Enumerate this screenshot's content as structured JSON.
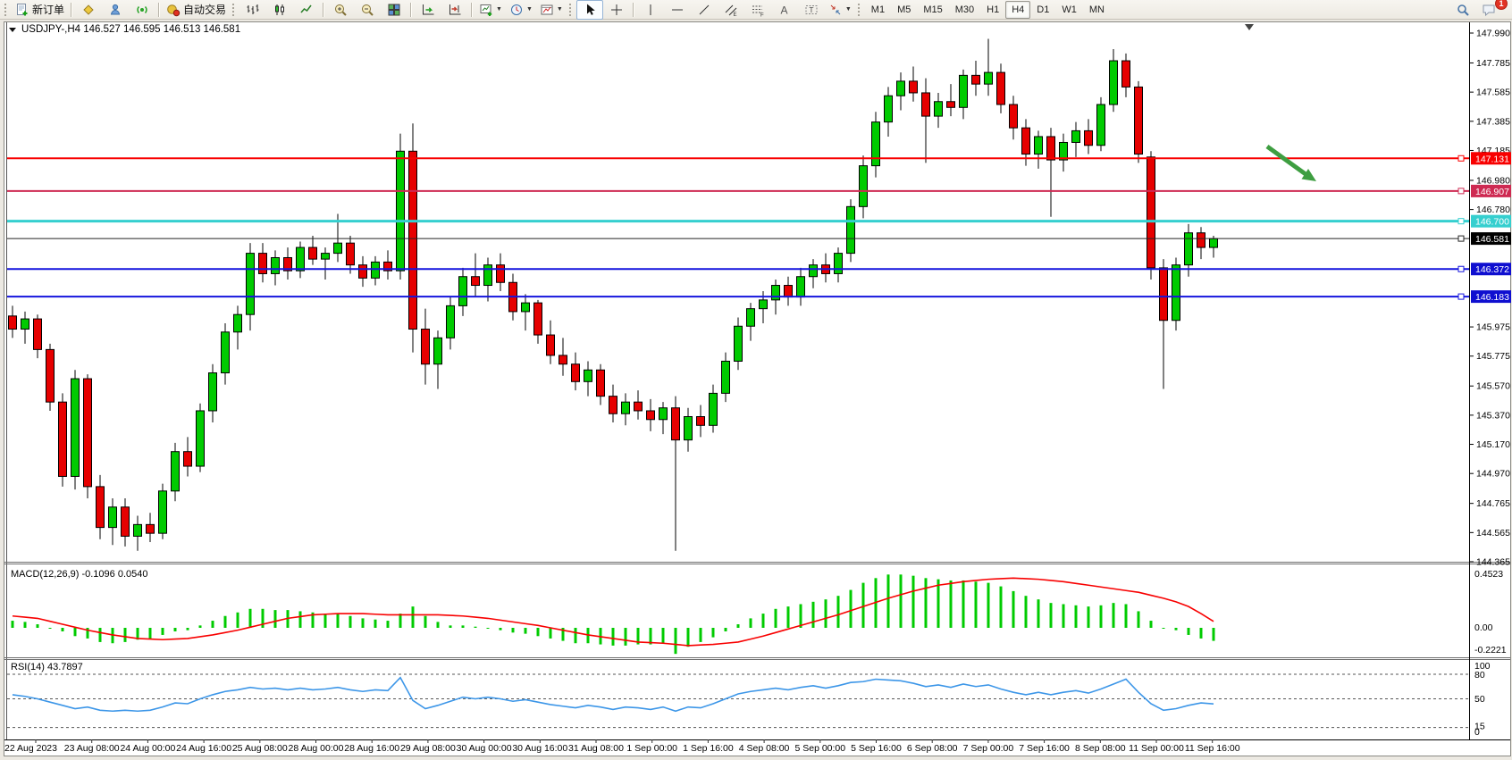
{
  "toolbar": {
    "new_order_label": "新订单",
    "autotrade_label": "自动交易",
    "timeframes": [
      "M1",
      "M5",
      "M15",
      "M30",
      "H1",
      "H4",
      "D1",
      "W1",
      "MN"
    ],
    "active_timeframe": "H4",
    "notification_badge": "1"
  },
  "chart_data": {
    "type": "candlestick",
    "title": {
      "symbol": "USDJPY-,H4",
      "open": "146.527",
      "high": "146.595",
      "low": "146.513",
      "close": "146.581"
    },
    "price_axis_ticks": [
      147.99,
      147.785,
      147.585,
      147.385,
      147.185,
      146.98,
      146.78,
      145.975,
      145.775,
      145.57,
      145.37,
      145.17,
      144.97,
      144.765,
      144.565,
      144.365
    ],
    "hlines": [
      {
        "price": 147.131,
        "label": "147.131",
        "color": "#F80000",
        "width": 2,
        "label_bg": "#F80000"
      },
      {
        "price": 146.907,
        "label": "146.907",
        "color": "#CE2A52",
        "width": 2,
        "label_bg": "#CE2A52"
      },
      {
        "price": 146.7,
        "label": "146.700",
        "color": "#35CFCF",
        "width": 3,
        "label_bg": "#35CFCF"
      },
      {
        "price": 146.581,
        "label": "146.581",
        "color": "#252525",
        "width": 1,
        "label_bg": "#000000"
      },
      {
        "price": 146.372,
        "label": "146.372",
        "color": "#1414DD",
        "width": 2,
        "label_bg": "#0F0FD0"
      },
      {
        "price": 146.183,
        "label": "146.183",
        "color": "#1414DD",
        "width": 2,
        "label_bg": "#0F0FD0"
      }
    ],
    "colors": {
      "up": "#00CB00",
      "down": "#E60000",
      "outline": "#000000"
    },
    "candles": [
      [
        146.05,
        146.12,
        145.9,
        145.96
      ],
      [
        145.96,
        146.08,
        145.86,
        146.03
      ],
      [
        146.03,
        146.06,
        145.76,
        145.82
      ],
      [
        145.82,
        145.86,
        145.4,
        145.46
      ],
      [
        145.46,
        145.52,
        144.88,
        144.95
      ],
      [
        144.95,
        145.68,
        144.86,
        145.62
      ],
      [
        145.62,
        145.65,
        144.8,
        144.88
      ],
      [
        144.88,
        144.96,
        144.52,
        144.6
      ],
      [
        144.6,
        144.8,
        144.48,
        144.74
      ],
      [
        144.74,
        144.8,
        144.47,
        144.54
      ],
      [
        144.54,
        144.68,
        144.44,
        144.62
      ],
      [
        144.62,
        144.7,
        144.5,
        144.56
      ],
      [
        144.56,
        144.9,
        144.52,
        144.85
      ],
      [
        144.85,
        145.18,
        144.78,
        145.12
      ],
      [
        145.12,
        145.22,
        144.95,
        145.02
      ],
      [
        145.02,
        145.45,
        144.98,
        145.4
      ],
      [
        145.4,
        145.72,
        145.32,
        145.66
      ],
      [
        145.66,
        146.0,
        145.58,
        145.94
      ],
      [
        145.94,
        146.12,
        145.82,
        146.06
      ],
      [
        146.06,
        146.55,
        145.95,
        146.48
      ],
      [
        146.48,
        146.55,
        146.28,
        146.34
      ],
      [
        146.34,
        146.5,
        146.26,
        146.45
      ],
      [
        146.45,
        146.52,
        146.3,
        146.36
      ],
      [
        146.36,
        146.56,
        146.31,
        146.52
      ],
      [
        146.52,
        146.6,
        146.4,
        146.44
      ],
      [
        146.44,
        146.52,
        146.3,
        146.48
      ],
      [
        146.48,
        146.75,
        146.42,
        146.55
      ],
      [
        146.55,
        146.6,
        146.34,
        146.4
      ],
      [
        146.4,
        146.46,
        146.25,
        146.31
      ],
      [
        146.31,
        146.46,
        146.26,
        146.42
      ],
      [
        146.42,
        146.5,
        146.3,
        146.36
      ],
      [
        146.36,
        147.3,
        146.3,
        147.18
      ],
      [
        147.18,
        147.37,
        145.8,
        145.96
      ],
      [
        145.96,
        146.1,
        145.58,
        145.72
      ],
      [
        145.72,
        145.95,
        145.55,
        145.9
      ],
      [
        145.9,
        146.18,
        145.82,
        146.12
      ],
      [
        146.12,
        146.38,
        146.05,
        146.32
      ],
      [
        146.32,
        146.48,
        146.18,
        146.26
      ],
      [
        146.26,
        146.45,
        146.15,
        146.4
      ],
      [
        146.4,
        146.48,
        146.22,
        146.28
      ],
      [
        146.28,
        146.34,
        146.02,
        146.08
      ],
      [
        146.08,
        146.2,
        145.95,
        146.14
      ],
      [
        146.14,
        146.16,
        145.86,
        145.92
      ],
      [
        145.92,
        146.02,
        145.72,
        145.78
      ],
      [
        145.78,
        145.9,
        145.64,
        145.72
      ],
      [
        145.72,
        145.8,
        145.54,
        145.6
      ],
      [
        145.6,
        145.74,
        145.5,
        145.68
      ],
      [
        145.68,
        145.72,
        145.44,
        145.5
      ],
      [
        145.5,
        145.58,
        145.32,
        145.38
      ],
      [
        145.38,
        145.52,
        145.3,
        145.46
      ],
      [
        145.46,
        145.54,
        145.34,
        145.4
      ],
      [
        145.4,
        145.48,
        145.26,
        145.34
      ],
      [
        145.34,
        145.46,
        145.24,
        145.42
      ],
      [
        145.42,
        145.5,
        144.44,
        145.2
      ],
      [
        145.2,
        145.42,
        145.12,
        145.36
      ],
      [
        145.36,
        145.44,
        145.22,
        145.3
      ],
      [
        145.3,
        145.58,
        145.25,
        145.52
      ],
      [
        145.52,
        145.8,
        145.46,
        145.74
      ],
      [
        145.74,
        146.04,
        145.68,
        145.98
      ],
      [
        145.98,
        146.14,
        145.88,
        146.1
      ],
      [
        146.1,
        146.22,
        146.0,
        146.16
      ],
      [
        146.16,
        146.3,
        146.06,
        146.26
      ],
      [
        146.26,
        146.32,
        146.12,
        146.18
      ],
      [
        146.18,
        146.38,
        146.12,
        146.32
      ],
      [
        146.32,
        146.44,
        146.24,
        146.4
      ],
      [
        146.4,
        146.48,
        146.28,
        146.34
      ],
      [
        146.34,
        146.52,
        146.28,
        146.48
      ],
      [
        146.48,
        146.85,
        146.42,
        146.8
      ],
      [
        146.8,
        147.15,
        146.72,
        147.08
      ],
      [
        147.08,
        147.45,
        147.0,
        147.38
      ],
      [
        147.38,
        147.62,
        147.28,
        147.56
      ],
      [
        147.56,
        147.72,
        147.46,
        147.66
      ],
      [
        147.66,
        147.76,
        147.52,
        147.58
      ],
      [
        147.58,
        147.68,
        147.1,
        147.42
      ],
      [
        147.42,
        147.58,
        147.34,
        147.52
      ],
      [
        147.52,
        147.64,
        147.42,
        147.48
      ],
      [
        147.48,
        147.74,
        147.4,
        147.7
      ],
      [
        147.7,
        147.8,
        147.56,
        147.64
      ],
      [
        147.64,
        147.95,
        147.56,
        147.72
      ],
      [
        147.72,
        147.78,
        147.44,
        147.5
      ],
      [
        147.5,
        147.56,
        147.26,
        147.34
      ],
      [
        147.34,
        147.4,
        147.08,
        147.16
      ],
      [
        147.16,
        147.32,
        147.06,
        147.28
      ],
      [
        147.28,
        147.34,
        146.73,
        147.12
      ],
      [
        147.12,
        147.3,
        147.04,
        147.24
      ],
      [
        147.24,
        147.38,
        147.14,
        147.32
      ],
      [
        147.32,
        147.4,
        147.16,
        147.22
      ],
      [
        147.22,
        147.55,
        147.18,
        147.5
      ],
      [
        147.5,
        147.88,
        147.45,
        147.8
      ],
      [
        147.8,
        147.85,
        147.55,
        147.62
      ],
      [
        147.62,
        147.66,
        147.1,
        147.16
      ],
      [
        147.14,
        147.18,
        146.3,
        146.38
      ],
      [
        146.38,
        146.44,
        145.55,
        146.02
      ],
      [
        146.02,
        146.45,
        145.95,
        146.4
      ],
      [
        146.4,
        146.68,
        146.32,
        146.62
      ],
      [
        146.62,
        146.66,
        146.44,
        146.52
      ],
      [
        146.52,
        146.6,
        146.45,
        146.58
      ]
    ],
    "time_labels": [
      "22 Aug 2023",
      "23 Aug 08:00",
      "24 Aug 00:00",
      "24 Aug 16:00",
      "25 Aug 08:00",
      "28 Aug 00:00",
      "28 Aug 16:00",
      "29 Aug 08:00",
      "30 Aug 00:00",
      "30 Aug 16:00",
      "31 Aug 08:00",
      "1 Sep 00:00",
      "1 Sep 16:00",
      "4 Sep 08:00",
      "5 Sep 00:00",
      "5 Sep 16:00",
      "6 Sep 08:00",
      "7 Sep 00:00",
      "7 Sep 16:00",
      "8 Sep 08:00",
      "11 Sep 00:00",
      "11 Sep 16:00"
    ],
    "annotation_arrow": {
      "color": "#3E9E41"
    },
    "macd": {
      "name": "MACD(12,26,9)",
      "value_main": "-0.1096",
      "value_signal": "0.0540",
      "axis": [
        "0.4523",
        "0.00",
        "-0.2221"
      ],
      "hist_color": "#00CB00",
      "signal_color": "#F80000",
      "hist": [
        0.06,
        0.05,
        0.03,
        0.0,
        -0.03,
        -0.07,
        -0.09,
        -0.12,
        -0.13,
        -0.12,
        -0.1,
        -0.09,
        -0.06,
        -0.03,
        -0.02,
        0.02,
        0.06,
        0.1,
        0.13,
        0.16,
        0.16,
        0.15,
        0.15,
        0.14,
        0.13,
        0.12,
        0.12,
        0.1,
        0.08,
        0.07,
        0.06,
        0.12,
        0.18,
        0.1,
        0.05,
        0.02,
        0.02,
        0.01,
        0.0,
        -0.02,
        -0.04,
        -0.05,
        -0.07,
        -0.09,
        -0.11,
        -0.13,
        -0.13,
        -0.14,
        -0.15,
        -0.15,
        -0.14,
        -0.14,
        -0.13,
        -0.22,
        -0.16,
        -0.12,
        -0.08,
        -0.03,
        0.03,
        0.08,
        0.12,
        0.16,
        0.18,
        0.2,
        0.22,
        0.24,
        0.27,
        0.32,
        0.38,
        0.42,
        0.45,
        0.45,
        0.44,
        0.42,
        0.41,
        0.4,
        0.4,
        0.39,
        0.38,
        0.35,
        0.31,
        0.27,
        0.24,
        0.21,
        0.2,
        0.19,
        0.18,
        0.19,
        0.21,
        0.2,
        0.14,
        0.06,
        0.0,
        -0.02,
        -0.06,
        -0.09,
        -0.11
      ],
      "signal": [
        0.1,
        0.09,
        0.08,
        0.055,
        0.03,
        0.005,
        -0.02,
        -0.04,
        -0.06,
        -0.075,
        -0.09,
        -0.095,
        -0.1,
        -0.095,
        -0.09,
        -0.075,
        -0.06,
        -0.04,
        -0.02,
        0.005,
        0.03,
        0.055,
        0.08,
        0.095,
        0.11,
        0.115,
        0.12,
        0.12,
        0.12,
        0.115,
        0.11,
        0.11,
        0.11,
        0.11,
        0.11,
        0.105,
        0.1,
        0.09,
        0.08,
        0.065,
        0.05,
        0.035,
        0.02,
        0.0,
        -0.02,
        -0.04,
        -0.06,
        -0.075,
        -0.09,
        -0.105,
        -0.12,
        -0.125,
        -0.13,
        -0.14,
        -0.15,
        -0.145,
        -0.14,
        -0.13,
        -0.12,
        -0.095,
        -0.07,
        -0.04,
        -0.01,
        0.02,
        0.05,
        0.08,
        0.11,
        0.145,
        0.18,
        0.215,
        0.25,
        0.28,
        0.31,
        0.335,
        0.36,
        0.375,
        0.39,
        0.4,
        0.41,
        0.415,
        0.42,
        0.415,
        0.41,
        0.4,
        0.39,
        0.375,
        0.36,
        0.345,
        0.33,
        0.315,
        0.3,
        0.275,
        0.25,
        0.22,
        0.18,
        0.12,
        0.054
      ]
    },
    "rsi": {
      "name": "RSI(14)",
      "value": "43.7897",
      "axis": [
        "100",
        "80",
        "50",
        "15",
        "0"
      ],
      "levels": [
        80,
        50,
        15
      ],
      "line_color": "#3C96E8",
      "values": [
        55,
        53,
        50,
        46,
        42,
        38,
        40,
        36,
        35,
        36,
        35,
        36,
        40,
        45,
        44,
        50,
        55,
        59,
        61,
        64,
        62,
        63,
        61,
        63,
        61,
        62,
        64,
        61,
        59,
        61,
        60,
        76,
        48,
        38,
        42,
        47,
        52,
        50,
        52,
        50,
        47,
        49,
        46,
        43,
        41,
        39,
        42,
        40,
        37,
        40,
        39,
        37,
        40,
        35,
        40,
        39,
        44,
        50,
        56,
        59,
        61,
        63,
        61,
        64,
        66,
        63,
        66,
        70,
        71,
        74,
        73,
        72,
        69,
        65,
        67,
        64,
        68,
        65,
        67,
        62,
        58,
        55,
        58,
        55,
        58,
        60,
        57,
        62,
        68,
        74,
        58,
        44,
        36,
        38,
        42,
        45,
        43.79
      ]
    }
  }
}
